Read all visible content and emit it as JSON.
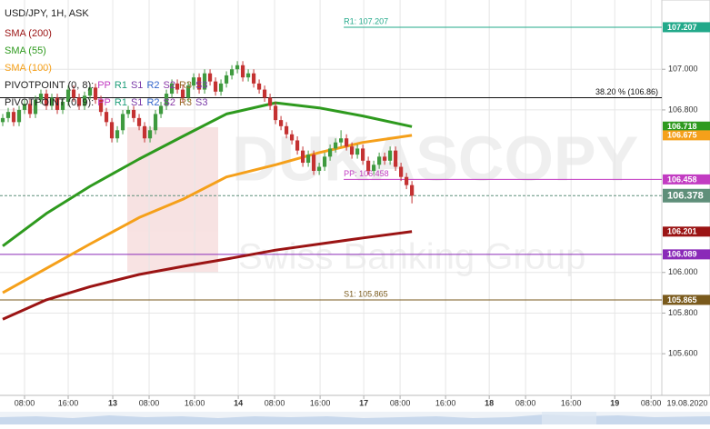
{
  "chart_data": {
    "type": "candlestick",
    "title": "USD/JPY, 1H, ASK",
    "up_color": "#3f9a3f",
    "down_color": "#c43232",
    "open": [
      106.74,
      106.76,
      106.79,
      106.74,
      106.8,
      106.83,
      106.78,
      106.85,
      106.88,
      106.82,
      106.86,
      106.8,
      106.84,
      106.9,
      106.86,
      106.82,
      106.87,
      106.91,
      106.85,
      106.79,
      106.74,
      106.66,
      106.7,
      106.78,
      106.8,
      106.76,
      106.72,
      106.66,
      106.7,
      106.78,
      106.82,
      106.88,
      106.93,
      106.9,
      106.86,
      106.92,
      106.96,
      106.9,
      106.98,
      106.94,
      106.89,
      106.93,
      106.97,
      107.0,
      107.02,
      106.96,
      106.98,
      106.93,
      106.9,
      106.86,
      106.82,
      106.75,
      106.72,
      106.68,
      106.65,
      106.6,
      106.54,
      106.58,
      106.5,
      106.52,
      106.57,
      106.61,
      106.64,
      106.66,
      106.62,
      106.58,
      106.61,
      106.55,
      106.5,
      106.53,
      106.57,
      106.55,
      106.6,
      106.52,
      106.47,
      106.43
    ],
    "high": [
      106.78,
      106.81,
      106.81,
      106.82,
      106.85,
      106.85,
      106.87,
      106.9,
      106.9,
      106.88,
      106.88,
      106.86,
      106.92,
      106.92,
      106.88,
      106.89,
      106.93,
      106.93,
      106.87,
      106.81,
      106.76,
      106.72,
      106.8,
      106.82,
      106.82,
      106.78,
      106.74,
      106.72,
      106.8,
      106.84,
      106.9,
      106.95,
      106.95,
      106.92,
      106.94,
      106.98,
      106.98,
      107.0,
      107.0,
      106.96,
      106.95,
      106.99,
      107.02,
      107.04,
      107.04,
      107.0,
      107.0,
      106.95,
      106.92,
      106.88,
      106.84,
      106.77,
      106.74,
      106.7,
      106.67,
      106.62,
      106.6,
      106.6,
      106.54,
      106.59,
      106.63,
      106.66,
      106.7,
      106.68,
      106.64,
      106.63,
      106.63,
      106.57,
      106.55,
      106.59,
      106.59,
      106.62,
      106.62,
      106.54,
      106.49,
      106.45
    ],
    "low": [
      106.72,
      106.74,
      106.72,
      106.72,
      106.78,
      106.76,
      106.76,
      106.83,
      106.8,
      106.8,
      106.78,
      106.78,
      106.82,
      106.84,
      106.8,
      106.8,
      106.85,
      106.83,
      106.77,
      106.72,
      106.64,
      106.64,
      106.68,
      106.76,
      106.74,
      106.7,
      106.64,
      106.64,
      106.68,
      106.76,
      106.8,
      106.86,
      106.88,
      106.84,
      106.84,
      106.9,
      106.88,
      106.88,
      106.92,
      106.87,
      106.87,
      106.91,
      106.95,
      106.98,
      106.94,
      106.94,
      106.91,
      106.88,
      106.84,
      106.8,
      106.73,
      106.7,
      106.66,
      106.63,
      106.58,
      106.52,
      106.52,
      106.48,
      106.48,
      106.5,
      106.55,
      106.59,
      106.62,
      106.6,
      106.56,
      106.56,
      106.53,
      106.48,
      106.48,
      106.51,
      106.53,
      106.53,
      106.5,
      106.45,
      106.41,
      106.34
    ],
    "close": [
      106.76,
      106.79,
      106.74,
      106.8,
      106.83,
      106.78,
      106.85,
      106.88,
      106.82,
      106.86,
      106.8,
      106.84,
      106.9,
      106.86,
      106.82,
      106.87,
      106.91,
      106.85,
      106.79,
      106.74,
      106.66,
      106.7,
      106.78,
      106.8,
      106.76,
      106.72,
      106.66,
      106.7,
      106.78,
      106.82,
      106.88,
      106.93,
      106.9,
      106.86,
      106.92,
      106.96,
      106.9,
      106.98,
      106.94,
      106.89,
      106.93,
      106.97,
      107.0,
      107.02,
      106.96,
      106.98,
      106.93,
      106.9,
      106.86,
      106.82,
      106.75,
      106.72,
      106.68,
      106.65,
      106.6,
      106.54,
      106.58,
      106.5,
      106.52,
      106.57,
      106.61,
      106.64,
      106.66,
      106.62,
      106.58,
      106.61,
      106.55,
      106.5,
      106.53,
      106.57,
      106.55,
      106.6,
      106.52,
      106.47,
      106.43,
      106.378
    ],
    "xlim": [
      0,
      121.3
    ],
    "xticks": [
      {
        "value": 4.5,
        "label": "08:00"
      },
      {
        "value": 12.5,
        "label": "16:00"
      },
      {
        "value": 20.67,
        "label": "13"
      },
      {
        "value": 27.33,
        "label": "08:00"
      },
      {
        "value": 35.67,
        "label": "16:00"
      },
      {
        "value": 43.67,
        "label": "14"
      },
      {
        "value": 50.33,
        "label": "08:00"
      },
      {
        "value": 58.67,
        "label": "16:00"
      },
      {
        "value": 66.67,
        "label": "17"
      },
      {
        "value": 73.33,
        "label": "08:00"
      },
      {
        "value": 81.67,
        "label": "16:00"
      },
      {
        "value": 89.67,
        "label": "18"
      },
      {
        "value": 96.33,
        "label": "08:00"
      },
      {
        "value": 104.67,
        "label": "16:00"
      },
      {
        "value": 112.67,
        "label": "19"
      },
      {
        "value": 119.33,
        "label": "08:00"
      }
    ],
    "date_label": "19.08.2020",
    "ylim": [
      105.395,
      107.341
    ],
    "yticks": [
      {
        "value": 107.0,
        "label": "107.000"
      },
      {
        "value": 106.8,
        "label": "106.800"
      },
      {
        "value": 106.0,
        "label": "106.000"
      },
      {
        "value": 105.8,
        "label": "105.800"
      },
      {
        "value": 105.6,
        "label": "105.600"
      }
    ],
    "grid": true,
    "indicators": [
      {
        "name": "SMA (200)",
        "color": "#9b1414",
        "x": [
          0,
          8,
          16,
          25,
          33,
          41,
          50,
          58,
          66,
          75
        ],
        "values": [
          105.77,
          105.865,
          105.93,
          105.99,
          106.03,
          106.066,
          106.11,
          106.14,
          106.17,
          106.201
        ]
      },
      {
        "name": "SMA (55)",
        "color": "#2e9a1e",
        "x": [
          0,
          8,
          16,
          25,
          33,
          41,
          50,
          58,
          66,
          75
        ],
        "values": [
          106.13,
          106.29,
          106.424,
          106.558,
          106.67,
          106.78,
          106.835,
          106.81,
          106.77,
          106.718
        ]
      },
      {
        "name": "SMA (100)",
        "color": "#f5a01a",
        "x": [
          0,
          8,
          16,
          25,
          33,
          41,
          50,
          58,
          66,
          75
        ],
        "values": [
          105.9,
          106.02,
          106.14,
          106.27,
          106.36,
          106.47,
          106.53,
          106.59,
          106.64,
          106.675
        ]
      }
    ],
    "pivot_legend": [
      {
        "name": "PIVOTPOINT (0, 8):",
        "items": [
          "PP",
          "R1",
          "S1",
          "R2",
          "S2",
          "R3",
          "S3"
        ]
      },
      {
        "name": "PIVOTPOINT (0, 9):",
        "items": [
          "PP",
          "R1",
          "S1",
          "R2",
          "S2",
          "R3",
          "S3"
        ]
      }
    ],
    "pivot_item_colors": [
      "#c23cc2",
      "#1f9e7a",
      "#7a3aa8",
      "#3366cc",
      "#8a3aa8",
      "#9a6a2a",
      "#7a3aa8"
    ],
    "levels": [
      {
        "label": "R1: 107.207",
        "value": 107.207,
        "color": "#22a98a",
        "kind": "pivot",
        "x_start": 63
      },
      {
        "label": "38.20 % (106.86)",
        "value": 106.86,
        "color": "#111111",
        "kind": "fibonacci"
      },
      {
        "label": "PP: 106.458",
        "value": 106.458,
        "color": "#c23cc2",
        "kind": "pivot",
        "x_start": 63
      },
      {
        "value": 106.089,
        "color": "#8a2ab8",
        "kind": "pivot"
      },
      {
        "label": "S1: 105.865",
        "value": 105.865,
        "color": "#7a5a1c",
        "kind": "pivot"
      }
    ],
    "current_price": {
      "value": 106.378,
      "color": "#5f8f7a"
    },
    "watermark": [
      "DUKASCOPY",
      "Swiss Banking Group"
    ]
  }
}
